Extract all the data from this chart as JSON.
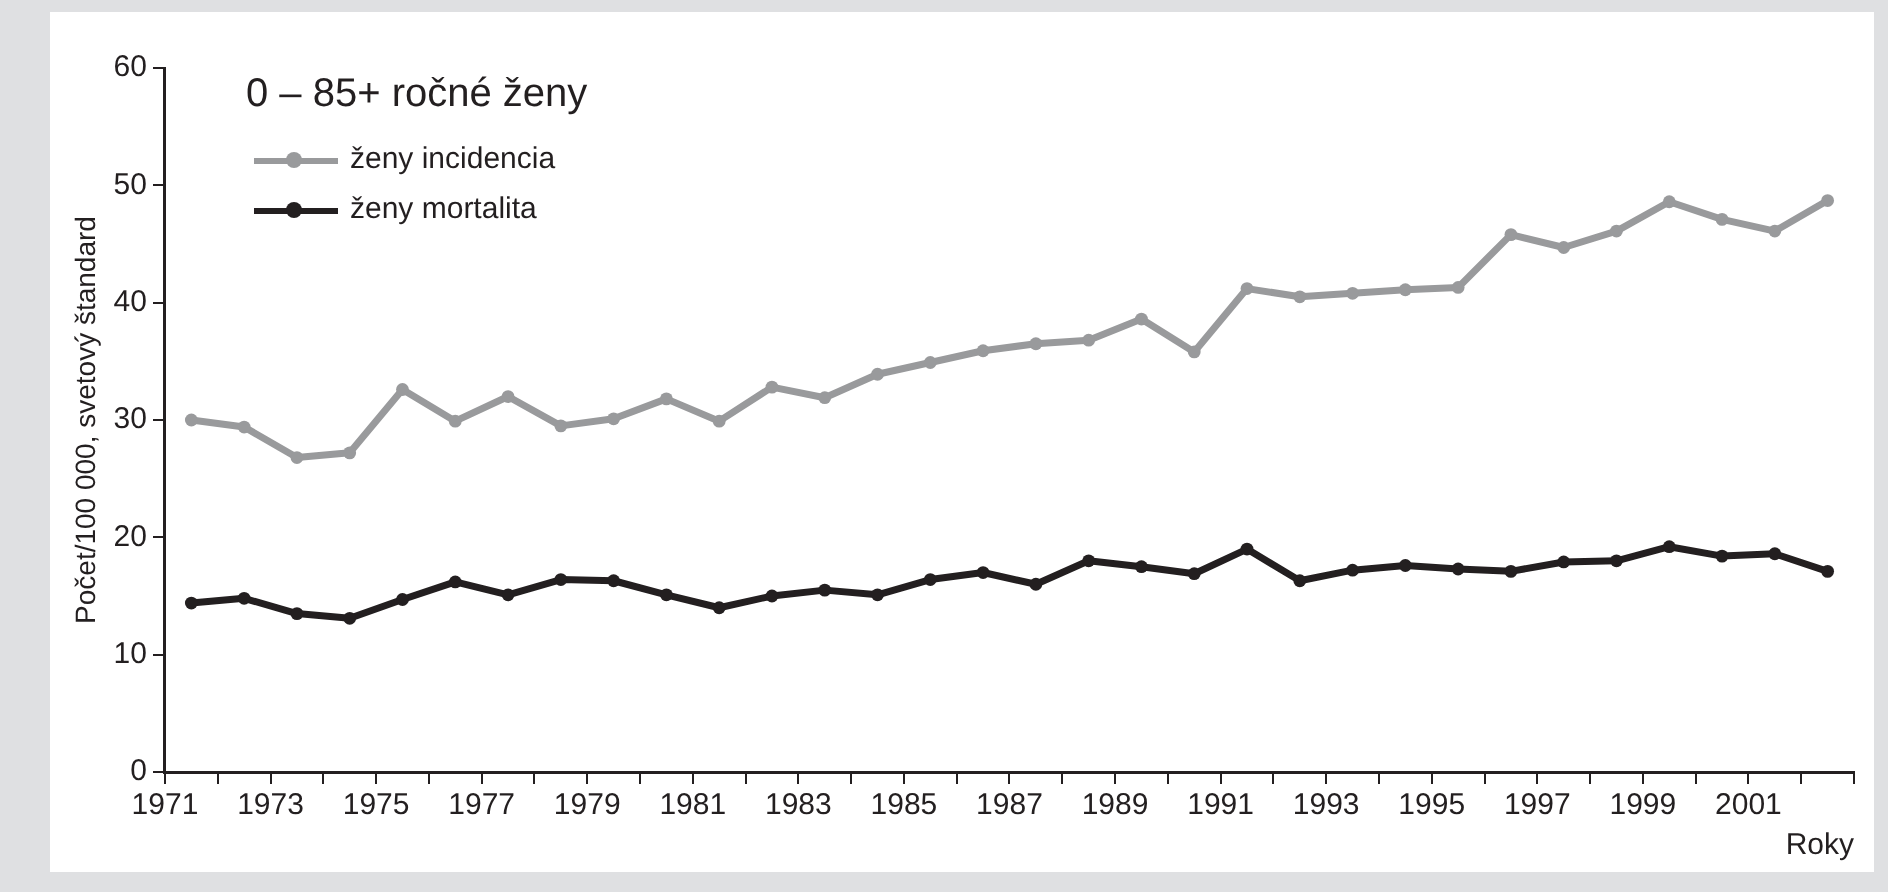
{
  "chart_data": {
    "type": "line",
    "legend_title": "0 – 85+ ročné ženy",
    "ylabel": "Počet/100 000, svetový štandard",
    "xlabel": "Roky",
    "x": [
      1971.5,
      1972.5,
      1973.5,
      1974.5,
      1975.5,
      1976.5,
      1977.5,
      1978.5,
      1979.5,
      1980.5,
      1981.5,
      1982.5,
      1983.5,
      1984.5,
      1985.5,
      1986.5,
      1987.5,
      1988.5,
      1989.5,
      1990.5,
      1991.5,
      1992.5,
      1993.5,
      1994.5,
      1995.5,
      1996.5,
      1997.5,
      1998.5,
      1999.5,
      2000.5,
      2001.5,
      2002.5
    ],
    "series": [
      {
        "name": "ženy incidencia",
        "color": "#999a9c",
        "values": [
          30.0,
          29.4,
          26.8,
          27.2,
          32.6,
          29.9,
          32.0,
          29.5,
          30.1,
          31.8,
          29.9,
          32.8,
          31.9,
          33.9,
          34.9,
          35.9,
          36.5,
          36.8,
          38.6,
          35.8,
          41.2,
          40.5,
          40.8,
          41.1,
          41.3,
          45.8,
          44.7,
          46.1,
          48.6,
          47.1,
          46.1,
          48.7
        ]
      },
      {
        "name": "ženy mortalita",
        "color": "#231f20",
        "values": [
          14.4,
          14.8,
          13.5,
          13.1,
          14.7,
          16.2,
          15.1,
          16.4,
          16.3,
          15.1,
          14.0,
          15.0,
          15.5,
          15.1,
          16.4,
          17.0,
          16.0,
          18.0,
          17.5,
          16.9,
          19.0,
          16.3,
          17.2,
          17.6,
          17.3,
          17.1,
          17.9,
          18.0,
          19.2,
          18.4,
          18.6,
          17.1
        ]
      }
    ],
    "xlim": [
      1971,
      2003
    ],
    "xticks": [
      1971,
      {
        "value": 1972,
        "label": null
      },
      1973,
      {
        "value": 1974,
        "label": null
      },
      1975,
      {
        "value": 1976,
        "label": null
      },
      1977,
      {
        "value": 1978,
        "label": null
      },
      1979,
      {
        "value": 1980,
        "label": null
      },
      1981,
      {
        "value": 1982,
        "label": null
      },
      1983,
      {
        "value": 1984,
        "label": null
      },
      1985,
      {
        "value": 1986,
        "label": null
      },
      1987,
      {
        "value": 1988,
        "label": null
      },
      1989,
      {
        "value": 1990,
        "label": null
      },
      1991,
      {
        "value": 1992,
        "label": null
      },
      1993,
      {
        "value": 1994,
        "label": null
      },
      1995,
      {
        "value": 1996,
        "label": null
      },
      1997,
      {
        "value": 1998,
        "label": null
      },
      1999,
      {
        "value": 2000,
        "label": null
      },
      2001,
      {
        "value": 2002,
        "label": null
      },
      {
        "value": 2003,
        "label": null
      }
    ],
    "ylim": [
      0,
      60
    ],
    "yticks": [
      0,
      10,
      20,
      30,
      40,
      50,
      60
    ],
    "grid": false,
    "legend": "top left",
    "marker": "circle",
    "line_style": "solid"
  }
}
